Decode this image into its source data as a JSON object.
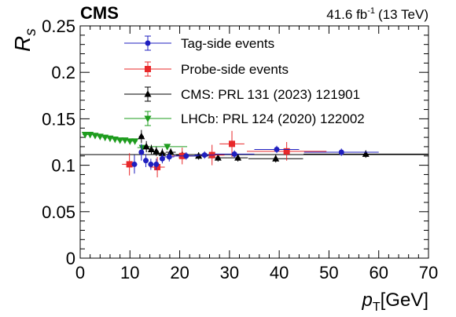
{
  "header": {
    "experiment": "CMS",
    "lumi_value": "41.6 fb",
    "lumi_exp": "-1",
    "lumi_energy": "(13 TeV)"
  },
  "chart_data": {
    "type": "scatter",
    "title": "",
    "ylabel": "R",
    "ylabel_sub": "s",
    "xlabel": "p",
    "xlabel_sub": "T",
    "xlabel_unit": "[GeV]",
    "xlim": [
      0,
      70
    ],
    "ylim": [
      0,
      0.25
    ],
    "xticks": [
      0,
      10,
      20,
      30,
      40,
      50,
      60,
      70
    ],
    "xtick_labels": [
      "0",
      "10",
      "20",
      "30",
      "40",
      "50",
      "60",
      "70"
    ],
    "yticks": [
      0,
      0.05,
      0.1,
      0.15,
      0.2,
      0.25
    ],
    "ytick_labels": [
      "0",
      "0.05",
      "0.1",
      "0.15",
      "0.2",
      "0.25"
    ],
    "grid": false,
    "legend_position": "top-left",
    "colors": {
      "tag": "#1f1fbf",
      "probe": "#e8282a",
      "cms": "#000000",
      "lhcb": "#1e9c1e",
      "fit_line": "#000000"
    },
    "fit_line": {
      "x": [
        0,
        70
      ],
      "y": [
        0.1115,
        0.1115
      ]
    },
    "series": [
      {
        "name": "Tag-side events",
        "key": "tag",
        "marker": "circle",
        "points": [
          {
            "x": 10.9,
            "y": 0.101,
            "xerr": 0.5,
            "yerr": 0.01
          },
          {
            "x": 12.3,
            "y": 0.114,
            "xerr": 0.5,
            "yerr": 0.009
          },
          {
            "x": 13.2,
            "y": 0.105,
            "xerr": 0.5,
            "yerr": 0.007
          },
          {
            "x": 14.2,
            "y": 0.101,
            "xerr": 0.5,
            "yerr": 0.006
          },
          {
            "x": 15.3,
            "y": 0.101,
            "xerr": 0.5,
            "yerr": 0.006
          },
          {
            "x": 16.5,
            "y": 0.107,
            "xerr": 0.5,
            "yerr": 0.005
          },
          {
            "x": 17.9,
            "y": 0.109,
            "xerr": 1.0,
            "yerr": 0.005
          },
          {
            "x": 21.3,
            "y": 0.11,
            "xerr": 2.5,
            "yerr": 0.004
          },
          {
            "x": 25.0,
            "y": 0.111,
            "xerr": 2.0,
            "yerr": 0.004
          },
          {
            "x": 31.0,
            "y": 0.112,
            "xerr": 4.0,
            "yerr": 0.004
          },
          {
            "x": 39.5,
            "y": 0.117,
            "xerr": 4.5,
            "yerr": 0.004
          },
          {
            "x": 52.5,
            "y": 0.114,
            "xerr": 7.5,
            "yerr": 0.004
          }
        ]
      },
      {
        "name": "Probe-side events",
        "key": "probe",
        "marker": "square",
        "points": [
          {
            "x": 9.9,
            "y": 0.101,
            "xerr": 1.5,
            "yerr": 0.012
          },
          {
            "x": 15.5,
            "y": 0.098,
            "xerr": 1.5,
            "yerr": 0.011
          },
          {
            "x": 20.5,
            "y": 0.11,
            "xerr": 2.0,
            "yerr": 0.009
          },
          {
            "x": 26.5,
            "y": 0.111,
            "xerr": 2.5,
            "yerr": 0.011
          },
          {
            "x": 30.5,
            "y": 0.123,
            "xerr": 2.5,
            "yerr": 0.014
          },
          {
            "x": 41.5,
            "y": 0.115,
            "xerr": 8.0,
            "yerr": 0.01
          }
        ]
      },
      {
        "name": "CMS: PRL 131 (2023) 121901",
        "key": "cms",
        "marker": "triangle-up",
        "points": [
          {
            "x": 12.3,
            "y": 0.131,
            "xerr": 0.5,
            "yerr": 0.007
          },
          {
            "x": 13.3,
            "y": 0.12,
            "xerr": 0.5,
            "yerr": 0.006
          },
          {
            "x": 14.3,
            "y": 0.117,
            "xerr": 0.5,
            "yerr": 0.005
          },
          {
            "x": 15.3,
            "y": 0.115,
            "xerr": 0.5,
            "yerr": 0.005
          },
          {
            "x": 16.5,
            "y": 0.113,
            "xerr": 0.7,
            "yerr": 0.005
          },
          {
            "x": 18.2,
            "y": 0.114,
            "xerr": 1.0,
            "yerr": 0.004
          },
          {
            "x": 20.5,
            "y": 0.111,
            "xerr": 1.2,
            "yerr": 0.004
          },
          {
            "x": 23.8,
            "y": 0.11,
            "xerr": 2.0,
            "yerr": 0.004
          },
          {
            "x": 27.7,
            "y": 0.108,
            "xerr": 2.0,
            "yerr": 0.004
          },
          {
            "x": 31.7,
            "y": 0.108,
            "xerr": 2.0,
            "yerr": 0.004
          },
          {
            "x": 39.3,
            "y": 0.107,
            "xerr": 5.5,
            "yerr": 0.004
          },
          {
            "x": 57.4,
            "y": 0.112,
            "xerr": 12.5,
            "yerr": 0.004
          }
        ]
      },
      {
        "name": "LHCb: PRL 124 (2020) 122002",
        "key": "lhcb",
        "marker": "triangle-down",
        "points": [
          {
            "x": 1.0,
            "y": 0.133,
            "xerr": 0.5,
            "yerr": 0.002
          },
          {
            "x": 2.0,
            "y": 0.133,
            "xerr": 0.5,
            "yerr": 0.002
          },
          {
            "x": 3.0,
            "y": 0.132,
            "xerr": 0.5,
            "yerr": 0.002
          },
          {
            "x": 4.0,
            "y": 0.131,
            "xerr": 0.5,
            "yerr": 0.002
          },
          {
            "x": 5.0,
            "y": 0.13,
            "xerr": 0.5,
            "yerr": 0.002
          },
          {
            "x": 6.0,
            "y": 0.129,
            "xerr": 0.5,
            "yerr": 0.002
          },
          {
            "x": 7.0,
            "y": 0.128,
            "xerr": 0.5,
            "yerr": 0.002
          },
          {
            "x": 8.0,
            "y": 0.127,
            "xerr": 0.5,
            "yerr": 0.002
          },
          {
            "x": 9.0,
            "y": 0.127,
            "xerr": 0.5,
            "yerr": 0.002
          },
          {
            "x": 10.0,
            "y": 0.126,
            "xerr": 0.5,
            "yerr": 0.002
          },
          {
            "x": 11.0,
            "y": 0.126,
            "xerr": 0.5,
            "yerr": 0.002
          },
          {
            "x": 12.5,
            "y": 0.119,
            "xerr": 1.0,
            "yerr": 0.002
          },
          {
            "x": 17.5,
            "y": 0.12,
            "xerr": 4.0,
            "yerr": 0.003
          }
        ]
      }
    ]
  }
}
